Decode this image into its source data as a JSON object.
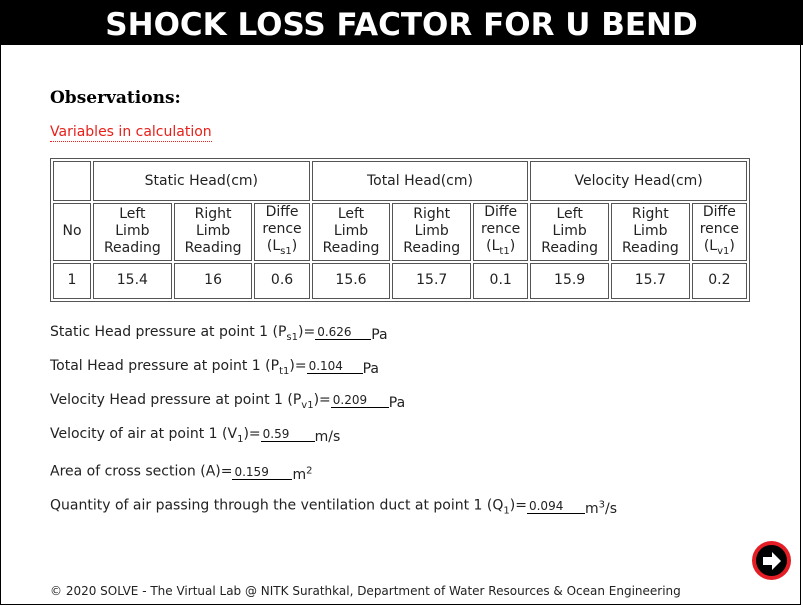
{
  "title": "SHOCK LOSS FACTOR FOR U BEND",
  "observations_heading": "Observations:",
  "variables_link": "Variables in calculation",
  "table": {
    "no_label": "No",
    "groups": [
      "Static Head(cm)",
      "Total Head(cm)",
      "Velocity Head(cm)"
    ],
    "left_limb": [
      "Left",
      "Limb",
      "Reading"
    ],
    "right_limb": [
      "Right",
      "Limb",
      "Reading"
    ],
    "diff": [
      "Diffe",
      "rence"
    ],
    "diff_symbols": [
      {
        "base": "(L",
        "sub": "s1",
        "end": ")"
      },
      {
        "base": "(L",
        "sub": "t1",
        "end": ")"
      },
      {
        "base": "(L",
        "sub": "v1",
        "end": ")"
      }
    ],
    "row": {
      "no": "1",
      "static": [
        "15.4",
        "16",
        "0.6"
      ],
      "total": [
        "15.6",
        "15.7",
        "0.1"
      ],
      "velocity": [
        "15.9",
        "15.7",
        "0.2"
      ]
    }
  },
  "results": [
    {
      "label": "Static Head pressure at point 1 (P",
      "sub": "s1",
      "close": ")=",
      "value": "0.626",
      "unit": "Pa",
      "unit_sup": ""
    },
    {
      "label": "Total Head pressure at point 1 (P",
      "sub": "t1",
      "close": ")=",
      "value": "0.104",
      "unit": "Pa",
      "unit_sup": ""
    },
    {
      "label": "Velocity Head pressure at point 1 (P",
      "sub": "v1",
      "close": ")=",
      "value": "0.209",
      "unit": "Pa",
      "unit_sup": ""
    },
    {
      "label": "Velocity of air at point 1 (V",
      "sub": "1",
      "close": ")=",
      "value": "0.59",
      "unit": "m/s",
      "unit_sup": ""
    },
    {
      "label": "Area of cross section (A)=",
      "sub": "",
      "close": "",
      "value": "0.159",
      "unit": "m",
      "unit_sup": "2"
    },
    {
      "label": "Quantity of air passing through the ventilation duct at point 1 (Q",
      "sub": "1",
      "close": ")=",
      "value": "0.094",
      "unit": "m",
      "unit_sup": "3",
      "unit_tail": "/s"
    }
  ],
  "footer": "© 2020 SOLVE - The Virtual Lab @ NITK Surathkal, Department of Water Resources & Ocean Engineering",
  "next_icon": "next-arrow-icon",
  "colors": {
    "accent": "#e41e24",
    "link": "#e8201a"
  }
}
